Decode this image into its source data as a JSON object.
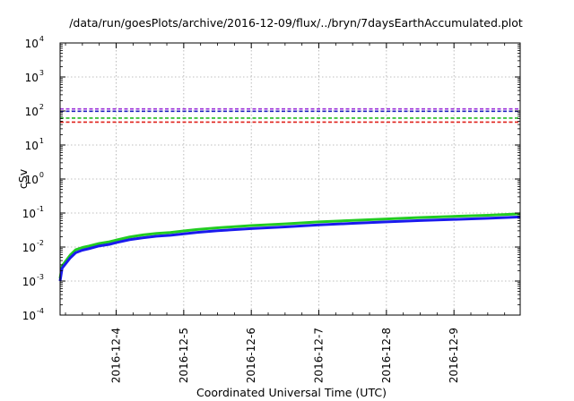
{
  "chart_data": {
    "type": "line",
    "title": "/data/run/goesPlots/archive/2016-12-09/flux/../bryn/7daysEarthAccumulated.plot",
    "xlabel": "Coordinated Universal Time (UTC)",
    "ylabel": "cSv",
    "y_scale": "log",
    "ylim_exponents": [
      -4,
      4
    ],
    "y_tick_base": "10",
    "y_tick_exponents": [
      "-4",
      "-3",
      "-2",
      "-1",
      "0",
      "1",
      "2",
      "3",
      "4"
    ],
    "xlim_days": [
      3.17,
      9.98
    ],
    "x_tick_labels": [
      "2016-12-4",
      "2016-12-5",
      "2016-12-6",
      "2016-12-7",
      "2016-12-8",
      "2016-12-9"
    ],
    "x_tick_days": [
      4,
      5,
      6,
      7,
      8,
      9
    ],
    "grid": true,
    "legend": "none",
    "thresholds": [
      {
        "value": 115,
        "color": "#9b30d9"
      },
      {
        "value": 98,
        "color": "#2020c0"
      },
      {
        "value": 62,
        "color": "#22bb22"
      },
      {
        "value": 47,
        "color": "#e0201a"
      }
    ],
    "series": [
      {
        "color": "#22cc22",
        "x_days": [
          3.17,
          3.2,
          3.25,
          3.32,
          3.4,
          3.5,
          3.6,
          3.75,
          3.9,
          4.0,
          4.2,
          4.4,
          4.6,
          4.8,
          5.0,
          5.2,
          5.5,
          6.0,
          6.5,
          7.0,
          7.5,
          8.0,
          8.5,
          9.0,
          9.5,
          9.98
        ],
        "values": [
          0.0012,
          0.0028,
          0.0038,
          0.0058,
          0.0083,
          0.0097,
          0.0107,
          0.0128,
          0.0143,
          0.016,
          0.0198,
          0.0228,
          0.0252,
          0.0268,
          0.0298,
          0.0328,
          0.0368,
          0.0428,
          0.0478,
          0.0548,
          0.0608,
          0.0668,
          0.0738,
          0.0798,
          0.0858,
          0.0948
        ]
      },
      {
        "color": "#1a1aee",
        "x_days": [
          3.17,
          3.2,
          3.25,
          3.32,
          3.4,
          3.5,
          3.6,
          3.75,
          3.9,
          4.0,
          4.2,
          4.4,
          4.6,
          4.8,
          5.0,
          5.2,
          5.5,
          6.0,
          6.5,
          7.0,
          7.5,
          8.0,
          8.5,
          9.0,
          9.5,
          9.98
        ],
        "values": [
          0.001,
          0.0024,
          0.0032,
          0.0048,
          0.0068,
          0.0081,
          0.009,
          0.0108,
          0.012,
          0.0135,
          0.0165,
          0.0188,
          0.0208,
          0.0222,
          0.0245,
          0.027,
          0.0302,
          0.035,
          0.0392,
          0.0448,
          0.0498,
          0.0548,
          0.06,
          0.0648,
          0.07,
          0.0768
        ]
      }
    ]
  }
}
